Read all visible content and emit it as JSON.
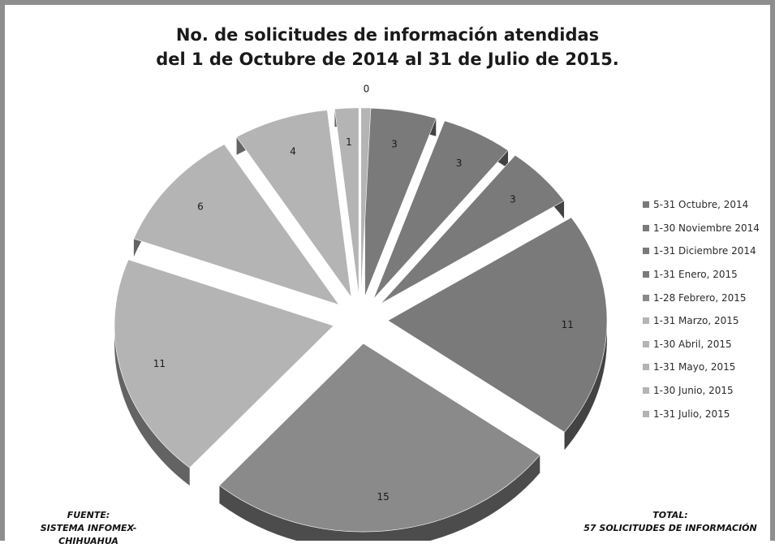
{
  "chart_data": {
    "type": "pie",
    "title_line1": "No. de solicitudes de información atendidas",
    "title_line2": "del 1 de Octubre de 2014 al 31 de Julio de 2015.",
    "categories": [
      "5-31 Octubre, 2014",
      "1-30 Noviembre 2014",
      "1-31 Diciembre 2014",
      "1-31 Enero, 2015",
      "1-28 Febrero, 2015",
      "1-31 Marzo, 2015",
      "1-30 Abril, 2015",
      "1-31 Mayo, 2015",
      "1-30 Junio, 2015",
      "1-31 Julio, 2015"
    ],
    "values": [
      3,
      3,
      3,
      11,
      15,
      11,
      6,
      4,
      1,
      0
    ],
    "colors": [
      "#7a7a7a",
      "#7a7a7a",
      "#7a7a7a",
      "#7a7a7a",
      "#8a8a8a",
      "#b4b4b4",
      "#b4b4b4",
      "#b4b4b4",
      "#b4b4b4",
      "#b4b4b4"
    ],
    "legend_position": "right",
    "exploded": true,
    "three_d": true
  },
  "footer": {
    "source_label": "FUENTE:",
    "source_value": "SISTEMA INFOMEX-CHIHUAHUA",
    "total_label": "TOTAL:",
    "total_value": "57 SOLICITUDES DE INFORMACIÓN"
  }
}
